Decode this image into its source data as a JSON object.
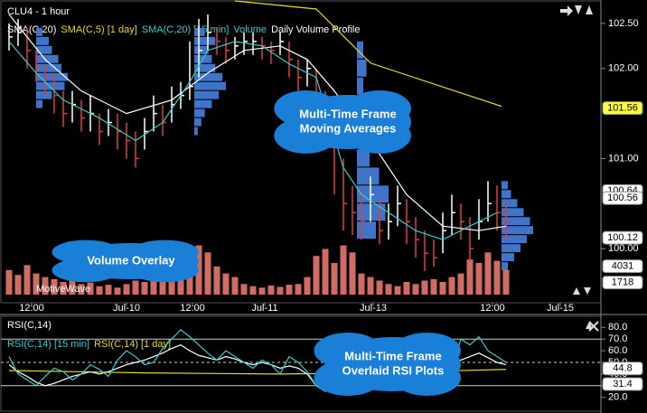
{
  "chart_data": {
    "type": "ohlc",
    "title": "CLU4 - 1 hour",
    "legend": [
      {
        "name": "SMA(C,20)",
        "color": "#ffffff"
      },
      {
        "name": "SMA(C,5) [1 day]",
        "color": "#e6d82a"
      },
      {
        "name": "SMA(C,20) [15 min]",
        "color": "#2fd0d0"
      },
      {
        "name": "Volume",
        "color": "#2fd0d0"
      },
      {
        "name": "Daily Volume Profile",
        "color": "#ffffff"
      }
    ],
    "xlim": [
      -1,
      65.5
    ],
    "xticks": [
      {
        "value": 2.5,
        "label": "12:00"
      },
      {
        "value": 13,
        "label": "Jul-10"
      },
      {
        "value": 20.3,
        "label": "12:00"
      },
      {
        "value": 28.3,
        "label": "Jul-11"
      },
      {
        "value": 40.3,
        "label": "Jul-13"
      },
      {
        "value": 53.5,
        "label": "12:00"
      },
      {
        "value": 61,
        "label": "Jul-15"
      }
    ],
    "ylim": [
      99.6,
      102.76
    ],
    "yticks": [
      {
        "value": 102.5,
        "label": "102.50"
      },
      {
        "value": 102,
        "label": "102.00"
      },
      {
        "value": 101,
        "label": "101.00"
      },
      {
        "value": 100,
        "label": "100.00"
      }
    ],
    "up_color": "#ffffff",
    "down_color": "#e03c3c",
    "close": [
      102.35,
      102.4,
      102.2,
      102.0,
      101.9,
      101.7,
      101.5,
      101.6,
      101.45,
      101.5,
      101.3,
      101.4,
      101.3,
      101.2,
      101.0,
      101.3,
      101.5,
      101.4,
      101.6,
      101.7,
      101.8,
      102.2,
      102.4,
      102.3,
      102.2,
      102.25,
      102.3,
      102.3,
      102.25,
      102.2,
      102.3,
      102.1,
      101.9,
      102.0,
      101.7,
      101.5,
      101.2,
      100.5,
      100.4,
      100.3,
      100.6,
      100.2,
      100.3,
      100.5,
      100.3,
      100.1,
      99.95,
      99.9,
      100.2,
      100.4,
      100.3,
      100.0,
      100.3,
      100.5,
      100.4,
      100.3
    ],
    "high": [
      102.5,
      102.55,
      102.45,
      102.2,
      102.05,
      101.95,
      101.75,
      101.75,
      101.65,
      101.7,
      101.5,
      101.55,
      101.5,
      101.4,
      101.3,
      101.45,
      101.7,
      101.6,
      101.8,
      101.85,
      102.3,
      102.55,
      102.6,
      102.45,
      102.35,
      102.35,
      102.4,
      102.4,
      102.35,
      102.3,
      102.4,
      102.3,
      102.1,
      102.1,
      102.0,
      101.75,
      101.6,
      101.0,
      100.7,
      100.65,
      100.8,
      100.55,
      100.5,
      100.7,
      100.55,
      100.35,
      100.2,
      100.1,
      100.4,
      100.6,
      100.5,
      100.35,
      100.55,
      100.75,
      100.7,
      100.5
    ],
    "low": [
      102.2,
      102.25,
      102.0,
      101.85,
      101.7,
      101.5,
      101.35,
      101.4,
      101.3,
      101.3,
      101.15,
      101.25,
      101.1,
      101.0,
      100.9,
      101.1,
      101.3,
      101.25,
      101.4,
      101.55,
      101.65,
      101.9,
      102.2,
      102.15,
      102.05,
      102.1,
      102.15,
      102.15,
      102.1,
      102.05,
      102.15,
      101.9,
      101.75,
      101.8,
      101.5,
      101.2,
      100.6,
      100.2,
      100.15,
      100.1,
      100.3,
      100.05,
      100.1,
      100.25,
      100.05,
      99.9,
      99.75,
      99.8,
      99.95,
      100.15,
      100.1,
      99.85,
      100.1,
      100.3,
      100.2,
      100.1
    ],
    "lines": [
      {
        "color": "#ffffff",
        "x": [
          0,
          4,
          8,
          13,
          18,
          22,
          26,
          30,
          33,
          36,
          40,
          44,
          48,
          52,
          55
        ],
        "values": [
          102.6,
          102.1,
          101.75,
          101.5,
          101.65,
          101.95,
          102.2,
          102.25,
          102.1,
          101.75,
          101.2,
          100.6,
          100.25,
          100.2,
          100.25
        ]
      },
      {
        "color": "#2fd0d0",
        "x": [
          0,
          3,
          6,
          10,
          14,
          17,
          20,
          22,
          25,
          28,
          31,
          34,
          37,
          39,
          42,
          45,
          48,
          51,
          54
        ],
        "values": [
          102.3,
          101.95,
          101.65,
          101.45,
          101.2,
          101.4,
          101.85,
          102.2,
          102.3,
          102.25,
          102.05,
          101.9,
          100.9,
          100.6,
          100.4,
          100.2,
          100.1,
          100.25,
          100.4
        ]
      },
      {
        "color": "#e6d82a",
        "x": [
          25,
          34,
          40,
          54.5
        ],
        "values": [
          102.75,
          102.66,
          102.06,
          101.58
        ]
      }
    ],
    "profile_color": "#3f74c8",
    "profiles": [
      {
        "x": 3,
        "levels": [
          101.6,
          101.7,
          101.8,
          101.9,
          102.0,
          102.1,
          102.2,
          102.3,
          102.4
        ],
        "volumes": [
          2,
          5,
          9,
          10,
          8,
          7,
          5,
          4,
          2
        ]
      },
      {
        "x": 20.5,
        "levels": [
          101.3,
          101.4,
          101.5,
          101.6,
          101.7,
          101.8,
          101.9,
          102.0,
          102.1,
          102.2,
          102.3,
          102.4
        ],
        "volumes": [
          1,
          2,
          3,
          5,
          7,
          9,
          8,
          6,
          5,
          4,
          6,
          3
        ]
      },
      {
        "x": 38.5,
        "levels": [
          100.2,
          100.4,
          100.6,
          100.8,
          101.0,
          101.2,
          101.4,
          101.6,
          101.8,
          102.0,
          102.2
        ],
        "volumes": [
          6,
          9,
          10,
          7,
          4,
          3,
          2,
          2,
          2,
          3,
          2
        ]
      },
      {
        "x": 54.5,
        "levels": [
          99.8,
          99.9,
          100.0,
          100.1,
          100.2,
          100.3,
          100.4,
          100.5,
          100.6,
          100.7
        ],
        "volumes": [
          2,
          4,
          6,
          8,
          10,
          9,
          7,
          5,
          3,
          2
        ]
      }
    ],
    "price_badges": [
      {
        "value": 101.56,
        "label": "101.56",
        "color": "#ffff40"
      },
      {
        "value": 100.64,
        "label": "100.64",
        "color": "#ffffff"
      },
      {
        "value": 100.56,
        "label": "100.56",
        "color": "#ffffff"
      },
      {
        "value": 100.12,
        "label": "100.12",
        "color": "#ffffff"
      }
    ],
    "volume_color": "#e8786e",
    "vlim": [
      0,
      7200
    ],
    "volume": [
      3500,
      2800,
      4200,
      3000,
      2500,
      2200,
      1800,
      2000,
      1500,
      1700,
      1200,
      1400,
      1000,
      1500,
      2000,
      1800,
      2500,
      3000,
      3200,
      4500,
      5000,
      7000,
      6000,
      4000,
      3000,
      2500,
      1500,
      1200,
      1000,
      1300,
      1100,
      1400,
      1500,
      2500,
      5500,
      6500,
      4500,
      7000,
      6000,
      3000,
      2500,
      2000,
      1500,
      1200,
      1800,
      1500,
      2000,
      2200,
      1800,
      2500,
      3000,
      5000,
      4500,
      6000,
      4800,
      3500
    ],
    "volume_badges": [
      {
        "value": 4031,
        "label": "4031"
      },
      {
        "value": 1718,
        "label": "1718"
      }
    ],
    "watermark": "MotiveWave",
    "rsi": {
      "title": "RSI(C,14)",
      "legend": [
        {
          "name": "RSI(C,14) [15 min]",
          "color": "#2fd0d0"
        },
        {
          "name": "RSI(C,14) [1 day]",
          "color": "#e6d82a"
        }
      ],
      "ylim": [
        12,
        88
      ],
      "yticks": [
        {
          "value": 80,
          "label": "80.0"
        },
        {
          "value": 70,
          "label": "70.0"
        },
        {
          "value": 60,
          "label": "60.0"
        },
        {
          "value": 50,
          "label": "50.0"
        },
        {
          "value": 40,
          "label": "40.0"
        },
        {
          "value": 30,
          "label": "30.0"
        },
        {
          "value": 20,
          "label": "20.0"
        }
      ],
      "badges": [
        {
          "value": 44.8,
          "label": "44.8"
        },
        {
          "value": 31.4,
          "label": "31.4"
        }
      ],
      "main": {
        "color": "#ffffff",
        "values": [
          48,
          42,
          38,
          33,
          30,
          32,
          35,
          38,
          40,
          42,
          40,
          42,
          45,
          48,
          50,
          52,
          55,
          58,
          62,
          65,
          60,
          56,
          54,
          52,
          55,
          53,
          50,
          48,
          50,
          48,
          45,
          47,
          45,
          40,
          30,
          26,
          28,
          32,
          38,
          42,
          45,
          44,
          46,
          45,
          42,
          44,
          47,
          50,
          48,
          46,
          52,
          55,
          58,
          54,
          50,
          48
        ]
      },
      "fast": {
        "color": "#2fd0d0",
        "values": [
          55,
          40,
          35,
          30,
          38,
          45,
          42,
          35,
          40,
          48,
          44,
          38,
          52,
          60,
          55,
          48,
          50,
          62,
          70,
          78,
          72,
          65,
          58,
          52,
          60,
          55,
          50,
          45,
          52,
          48,
          40,
          55,
          50,
          42,
          30,
          25,
          35,
          45,
          55,
          58,
          50,
          45,
          52,
          40,
          35,
          48,
          55,
          60,
          50,
          45,
          70,
          65,
          72,
          60,
          55,
          50
        ]
      },
      "slow": {
        "color": "#e6d82a",
        "x": [
          0,
          15,
          30,
          40,
          55
        ],
        "values": [
          43,
          41,
          40,
          41,
          44
        ]
      }
    },
    "callouts": [
      {
        "lines": [
          "Multi-Time Frame",
          "Moving Averages"
        ]
      },
      {
        "lines": [
          "Volume Overlay"
        ]
      },
      {
        "lines": [
          "Multi-Time Frame",
          "Overlaid RSI Plots"
        ]
      }
    ]
  }
}
